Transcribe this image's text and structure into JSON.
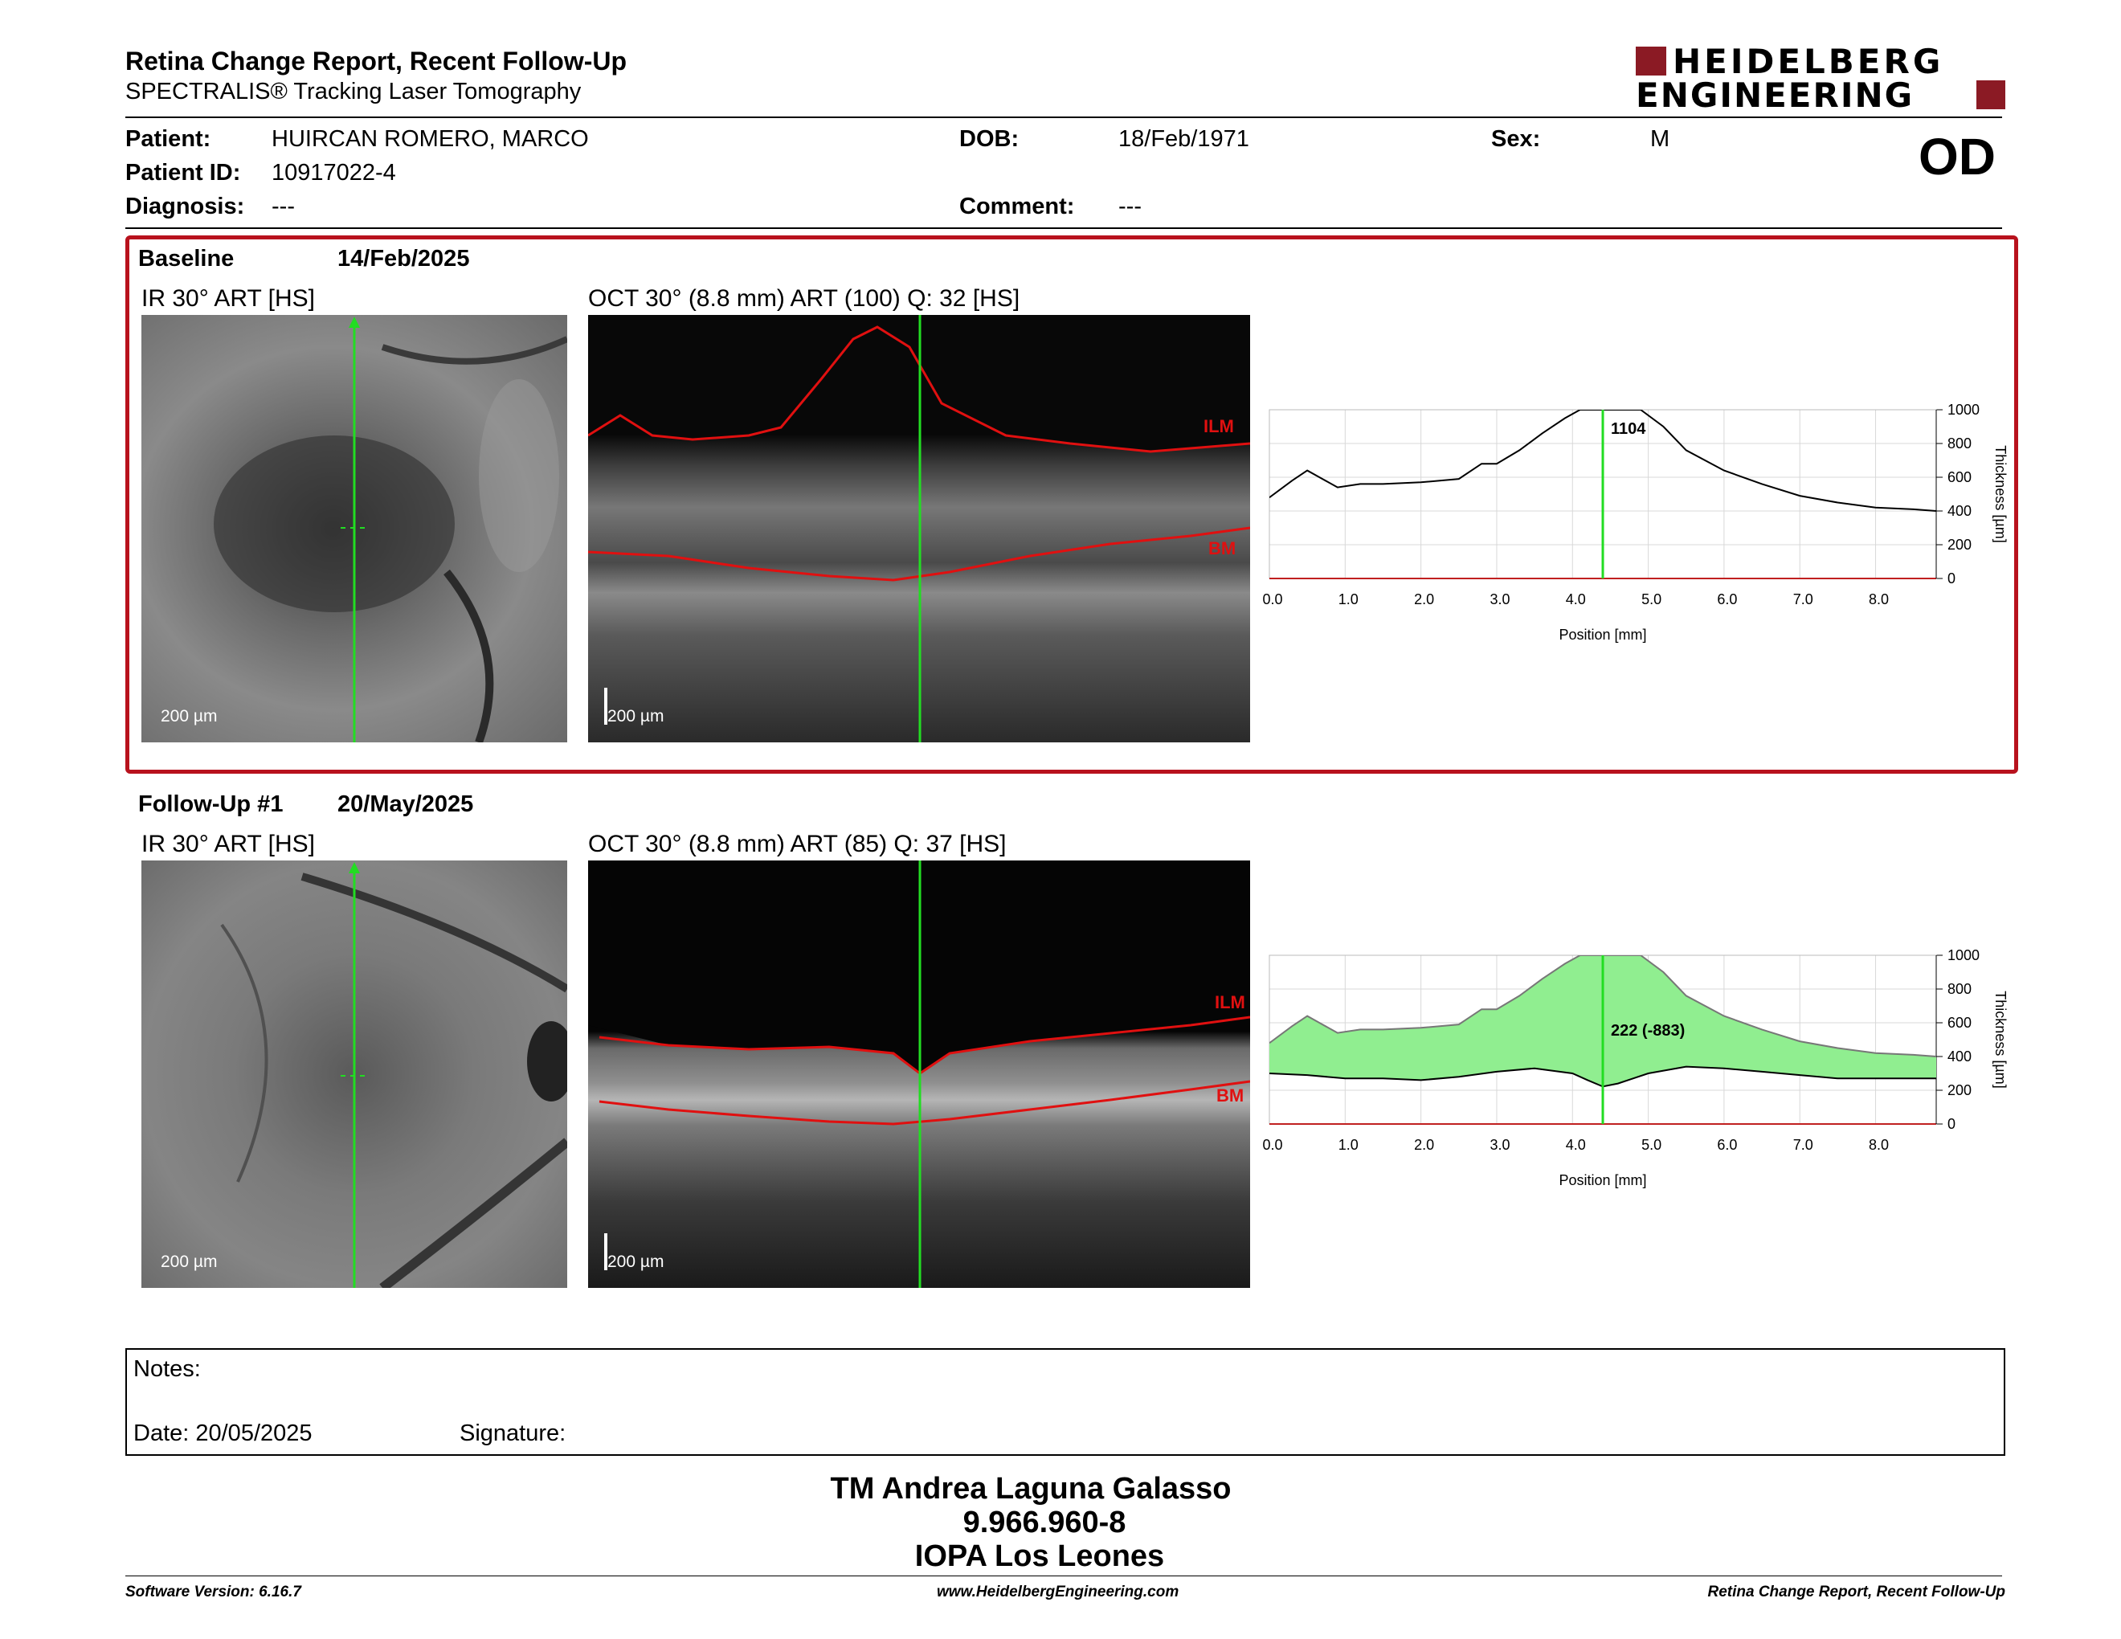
{
  "header": {
    "title": "Retina Change Report, Recent Follow-Up",
    "subtitle": "SPECTRALIS® Tracking Laser Tomography",
    "logo_line1": "HEIDELBERG",
    "logo_line2": "ENGINEERING",
    "eye": "OD"
  },
  "patient": {
    "patient_label": "Patient:",
    "patient_name": "HUIRCAN ROMERO, MARCO",
    "id_label": "Patient ID:",
    "id_value": "10917022-4",
    "diagnosis_label": "Diagnosis:",
    "diagnosis_value": "---",
    "dob_label": "DOB:",
    "dob_value": "18/Feb/1971",
    "comment_label": "Comment:",
    "comment_value": "---",
    "sex_label": "Sex:",
    "sex_value": "M"
  },
  "baseline": {
    "label": "Baseline",
    "date": "14/Feb/2025",
    "ir_label": "IR 30° ART [HS]",
    "oct_label": "OCT 30° (8.8 mm) ART (100) Q: 32 [HS]",
    "scale_ir": "200 µm",
    "scale_oct": "200 µm",
    "ilm": "ILM",
    "bm": "BM"
  },
  "followup": {
    "label": "Follow-Up #1",
    "date": "20/May/2025",
    "ir_label": "IR 30° ART [HS]",
    "oct_label": "OCT 30° (8.8 mm) ART (85) Q: 37 [HS]",
    "scale_ir": "200 µm",
    "scale_oct": "200 µm",
    "ilm": "ILM",
    "bm": "BM"
  },
  "chart_data": [
    {
      "type": "line",
      "xlabel": "Position [mm]",
      "ylabel": "Thickness [µm]",
      "xlim": [
        0,
        8.8
      ],
      "ylim": [
        0,
        1000
      ],
      "x_ticks": [
        "0.0",
        "1.0",
        "2.0",
        "3.0",
        "4.0",
        "5.0",
        "6.0",
        "7.0",
        "8.0"
      ],
      "y_ticks": [
        "0",
        "200",
        "400",
        "600",
        "800",
        "1000"
      ],
      "marker_x": 4.4,
      "marker_label": "1104",
      "series": [
        {
          "x": [
            0,
            0.3,
            0.5,
            0.7,
            0.9,
            1.2,
            1.5,
            2.0,
            2.5,
            2.8,
            3.0,
            3.3,
            3.6,
            3.9,
            4.1,
            4.3,
            4.5,
            4.7,
            4.9,
            5.2,
            5.5,
            6.0,
            6.5,
            7.0,
            7.5,
            8.0,
            8.5,
            8.8
          ],
          "y": [
            480,
            580,
            640,
            590,
            540,
            560,
            560,
            570,
            590,
            680,
            680,
            760,
            860,
            950,
            1020,
            1090,
            1104,
            1060,
            1010,
            900,
            760,
            640,
            560,
            490,
            450,
            420,
            410,
            400
          ]
        }
      ]
    },
    {
      "type": "area",
      "xlabel": "Position [mm]",
      "ylabel": "Thickness [µm]",
      "xlim": [
        0,
        8.8
      ],
      "ylim": [
        0,
        1000
      ],
      "x_ticks": [
        "0.0",
        "1.0",
        "2.0",
        "3.0",
        "4.0",
        "5.0",
        "6.0",
        "7.0",
        "8.0"
      ],
      "y_ticks": [
        "0",
        "200",
        "400",
        "600",
        "800",
        "1000"
      ],
      "marker_x": 4.4,
      "marker_label": "222 (-883)",
      "series": [
        {
          "x": [
            0,
            0.3,
            0.5,
            0.7,
            0.9,
            1.2,
            1.5,
            2.0,
            2.5,
            2.8,
            3.0,
            3.3,
            3.6,
            3.9,
            4.1,
            4.3,
            4.5,
            4.7,
            4.9,
            5.2,
            5.5,
            6.0,
            6.5,
            7.0,
            7.5,
            8.0,
            8.5,
            8.8
          ],
          "y": [
            480,
            580,
            640,
            590,
            540,
            560,
            560,
            570,
            590,
            680,
            680,
            760,
            860,
            950,
            1020,
            1090,
            1104,
            1060,
            1010,
            900,
            760,
            640,
            560,
            490,
            450,
            420,
            410,
            400
          ]
        },
        {
          "x": [
            0,
            0.5,
            1.0,
            1.5,
            2.0,
            2.5,
            3.0,
            3.5,
            4.0,
            4.2,
            4.4,
            4.6,
            4.8,
            5.0,
            5.5,
            6.0,
            6.5,
            7.0,
            7.5,
            8.0,
            8.5,
            8.8
          ],
          "y": [
            300,
            290,
            270,
            270,
            260,
            280,
            310,
            330,
            300,
            260,
            222,
            240,
            270,
            300,
            340,
            330,
            310,
            290,
            270,
            270,
            270,
            270
          ]
        }
      ]
    }
  ],
  "notes": {
    "label": "Notes:",
    "date_label": "Date: 20/05/2025",
    "signature_label": "Signature:"
  },
  "signatory": {
    "name": "TM Andrea Laguna Galasso",
    "id": "9.966.960-8",
    "org": "IOPA Los Leones"
  },
  "footer": {
    "software": "Software Version: 6.16.7",
    "url": "www.HeidelbergEngineering.com",
    "report": "Retina Change Report, Recent Follow-Up"
  },
  "colors": {
    "frame": "#b8121d",
    "scan_line": "#22dd22",
    "ilm_bm": "#e01010",
    "area_fill": "#90ee90"
  }
}
